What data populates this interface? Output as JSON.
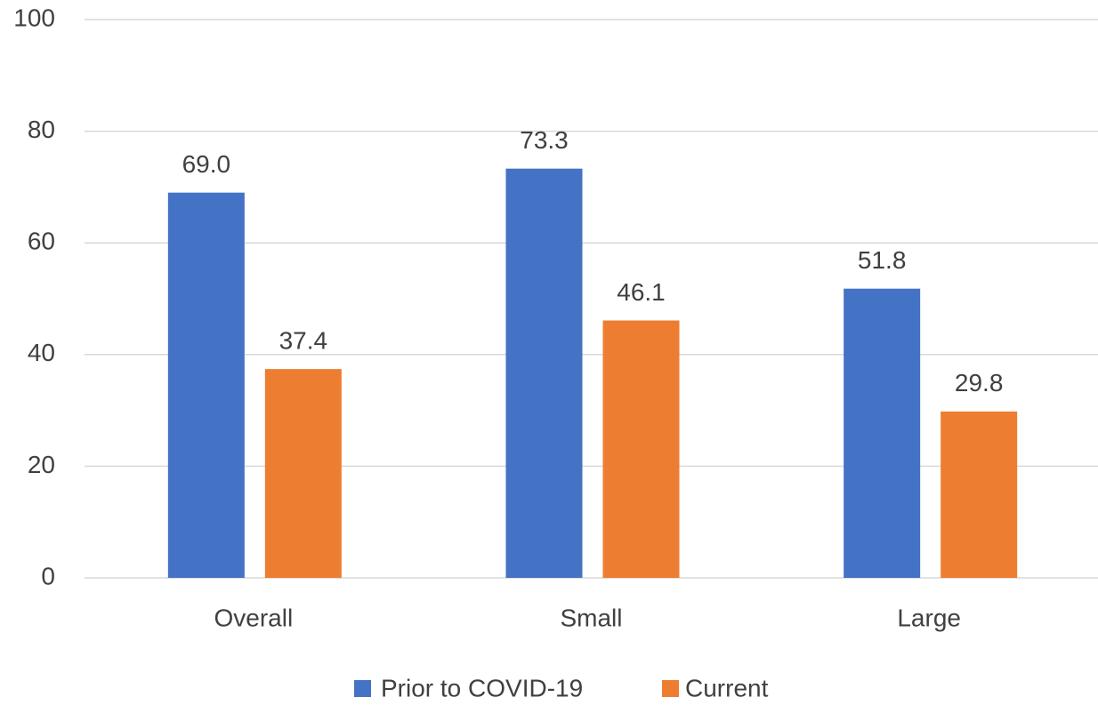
{
  "chart_data": {
    "type": "bar",
    "categories": [
      "Overall",
      "Small",
      "Large"
    ],
    "series": [
      {
        "name": "Prior to COVID-19",
        "color": "#4472c4",
        "values": [
          69.0,
          73.3,
          51.8
        ],
        "value_labels": [
          "69.0",
          "73.3",
          "51.8"
        ]
      },
      {
        "name": "Current",
        "color": "#ed7d31",
        "values": [
          37.4,
          46.1,
          29.8
        ]
      }
    ],
    "ylim": [
      0,
      100
    ],
    "yticks": [
      0,
      20,
      40,
      60,
      80,
      100
    ],
    "grid": true,
    "legend": "bottom"
  }
}
